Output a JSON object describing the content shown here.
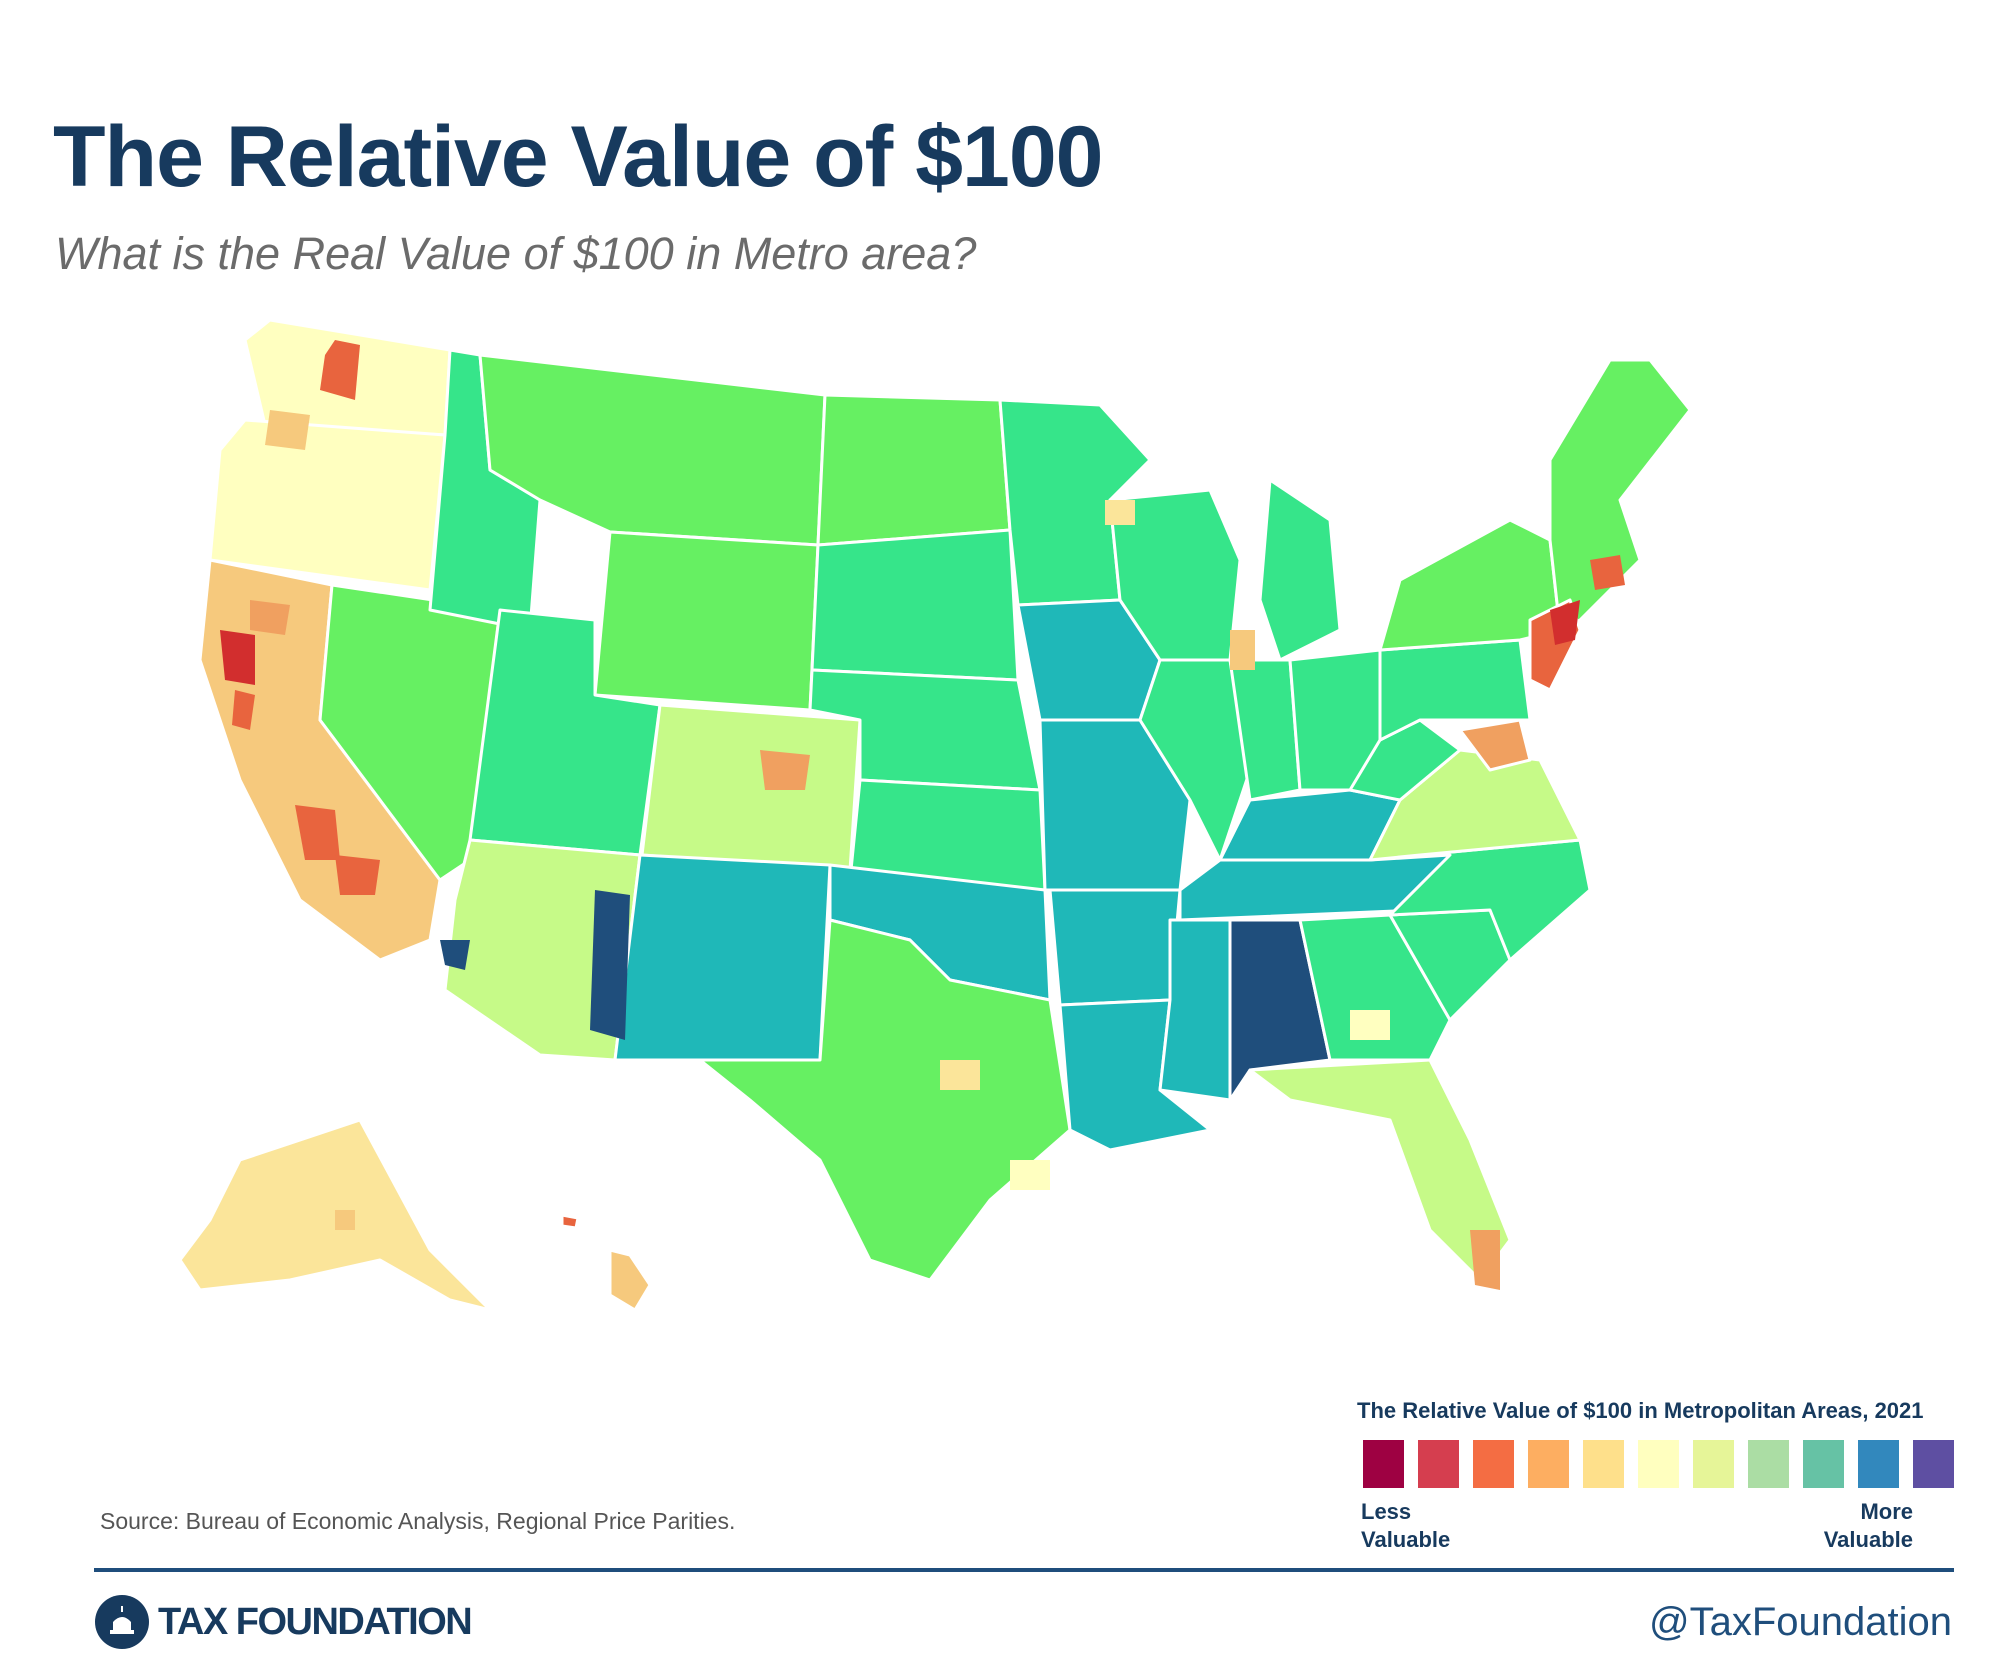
{
  "header": {
    "title": "The Relative Value of $100",
    "subtitle": "What is the Real Value of $100 in Metro area?"
  },
  "legend": {
    "title": "The Relative Value of $100 in Metropolitan Areas, 2021",
    "low_label": "Less Valuable",
    "high_label": "More Valuable",
    "colors": [
      "#9e0142",
      "#d53e4f",
      "#f46d43",
      "#fdae61",
      "#fee08b",
      "#ffffbf",
      "#e6f598",
      "#abdda4",
      "#66c2a5",
      "#3288bd",
      "#5e4fa2"
    ]
  },
  "map": {
    "palette": {
      "bright_green": "#66f062",
      "mid_green": "#36e58a",
      "teal": "#1fb8b8",
      "navy": "#1f4e7c",
      "light_green": "#c6fa88",
      "pale_yellow": "#ffffc0",
      "yellow": "#fbe59a",
      "light_orange": "#f6c97d",
      "orange": "#f0a060",
      "red_orange": "#e8643e",
      "red": "#d22e2e"
    }
  },
  "footer": {
    "source": "Source: Bureau of Economic Analysis, Regional Price Parities.",
    "brand": "TAX FOUNDATION",
    "handle": "@TaxFoundation"
  }
}
